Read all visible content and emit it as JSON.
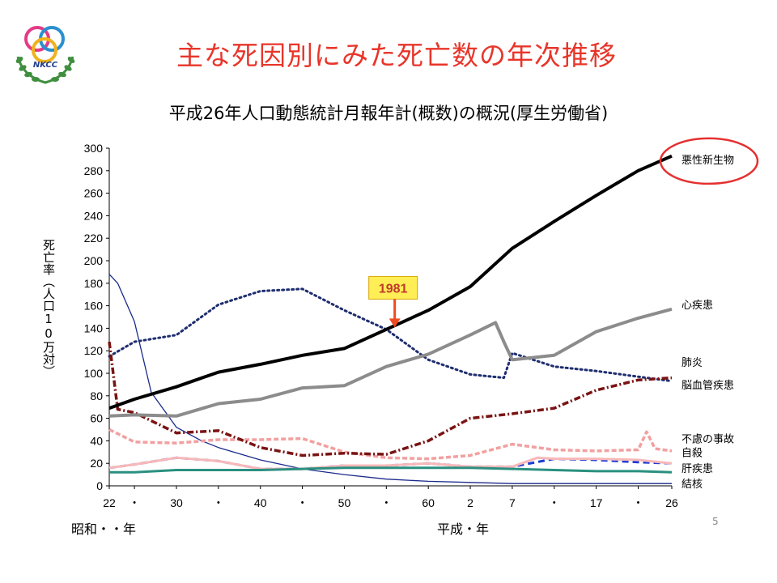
{
  "slide": {
    "title": "主な死因別にみた死亡数の年次推移",
    "subtitle": "平成26年人口動態統計月報年計(概数)の概況(厚生労働省)",
    "logo_text": "NKCC",
    "page_number": "5"
  },
  "colors": {
    "title": "#e8352a",
    "highlight_circle": "#e53030",
    "callout_box": "#ffee55",
    "callout_arrow": "#ef4a1f"
  },
  "chart_data": {
    "type": "line",
    "title": "",
    "ylabel": "死亡率（人口10万対）",
    "xlabel_left": "昭和・・年",
    "xlabel_right": "平成・年",
    "ylim": [
      0,
      300
    ],
    "yticks": [
      0,
      20,
      40,
      60,
      80,
      100,
      120,
      140,
      160,
      180,
      200,
      220,
      240,
      260,
      280,
      300
    ],
    "x_range": [
      1947,
      2014
    ],
    "xtick_labels": [
      {
        "x": 1947,
        "label": "22"
      },
      {
        "x": 1950,
        "label": "・"
      },
      {
        "x": 1955,
        "label": "30"
      },
      {
        "x": 1960,
        "label": "・"
      },
      {
        "x": 1965,
        "label": "40"
      },
      {
        "x": 1970,
        "label": "・"
      },
      {
        "x": 1975,
        "label": "50"
      },
      {
        "x": 1980,
        "label": "・"
      },
      {
        "x": 1985,
        "label": "60"
      },
      {
        "x": 1990,
        "label": "2"
      },
      {
        "x": 1995,
        "label": "7"
      },
      {
        "x": 2000,
        "label": "・"
      },
      {
        "x": 2005,
        "label": "17"
      },
      {
        "x": 2010,
        "label": "・"
      },
      {
        "x": 2014,
        "label": "26"
      }
    ],
    "annotation": {
      "label": "1981",
      "x": 1981,
      "y": 140
    },
    "highlighted_series": "悪性新生物",
    "series": [
      {
        "name": "悪性新生物",
        "color": "#000000",
        "style": "solid-thick",
        "x": [
          1947,
          1950,
          1955,
          1960,
          1965,
          1970,
          1975,
          1980,
          1985,
          1990,
          1995,
          2000,
          2005,
          2010,
          2014
        ],
        "y": [
          69,
          77,
          88,
          101,
          108,
          116,
          122,
          139,
          156,
          177,
          211,
          235,
          258,
          280,
          293
        ]
      },
      {
        "name": "心疾患",
        "color": "#8c8c8c",
        "style": "solid-thick",
        "x": [
          1947,
          1950,
          1955,
          1960,
          1965,
          1970,
          1975,
          1980,
          1985,
          1990,
          1993,
          1994,
          1995,
          2000,
          2005,
          2010,
          2014
        ],
        "y": [
          62,
          63,
          62,
          73,
          77,
          87,
          89,
          106,
          117,
          134,
          145,
          128,
          112,
          116,
          137,
          149,
          157
        ]
      },
      {
        "name": "肺炎",
        "color": "#7a1313",
        "style": "dashdot",
        "x": [
          1947,
          1948,
          1950,
          1955,
          1960,
          1965,
          1970,
          1975,
          1980,
          1985,
          1990,
          1995,
          2000,
          2005,
          2010,
          2014
        ],
        "y": [
          128,
          68,
          65,
          47,
          49,
          34,
          27,
          29,
          28,
          40,
          60,
          64,
          69,
          85,
          94,
          96
        ]
      },
      {
        "name": "脳血管疾患",
        "color": "#1f2e6f",
        "style": "dotted",
        "x": [
          1947,
          1950,
          1955,
          1960,
          1965,
          1970,
          1975,
          1980,
          1985,
          1990,
          1994,
          1995,
          2000,
          2005,
          2010,
          2014
        ],
        "y": [
          115,
          128,
          134,
          161,
          173,
          175,
          156,
          139,
          112,
          99,
          96,
          118,
          106,
          102,
          97,
          93
        ]
      },
      {
        "name": "不慮の事故",
        "color": "#f2a0a0",
        "style": "dashed-thick",
        "x": [
          1947,
          1950,
          1955,
          1960,
          1965,
          1970,
          1975,
          1980,
          1985,
          1990,
          1995,
          2000,
          2005,
          2010,
          2011,
          2012,
          2014
        ],
        "y": [
          50,
          39,
          38,
          41,
          41,
          42,
          30,
          25,
          24,
          27,
          37,
          32,
          31,
          32,
          48,
          33,
          31
        ]
      },
      {
        "name": "自殺",
        "color": "#f7b8b8",
        "style": "solid",
        "x": [
          1947,
          1950,
          1955,
          1960,
          1965,
          1970,
          1975,
          1980,
          1985,
          1990,
          1995,
          1998,
          2000,
          2005,
          2010,
          2014
        ],
        "y": [
          16,
          19,
          25,
          22,
          15,
          15,
          18,
          18,
          20,
          17,
          17,
          25,
          24,
          24,
          23,
          20
        ]
      },
      {
        "name": "肝疾患",
        "color": "#1a3bd6",
        "style": "dashed",
        "x": [
          1947,
          1950,
          1955,
          1960,
          1965,
          1970,
          1975,
          1980,
          1985,
          1990,
          1995,
          2000,
          2005,
          2010,
          2014
        ],
        "y": [
          16,
          19,
          25,
          22,
          15,
          15,
          18,
          18,
          20,
          17,
          17,
          24,
          23,
          21,
          20
        ]
      },
      {
        "name": "結核",
        "color": "#2a9080",
        "style": "solid",
        "x": [
          1947,
          1950,
          1955,
          1960,
          1965,
          1970,
          1975,
          1980,
          1985,
          1990,
          1995,
          2000,
          2005,
          2010,
          2014
        ],
        "y": [
          12,
          12,
          14,
          14,
          14,
          15,
          16,
          16,
          16,
          16,
          15,
          14,
          13,
          13,
          12
        ]
      },
      {
        "name": "結核_thin",
        "color": "#1a2a8a",
        "style": "solid-thin",
        "x": [
          1947,
          1948,
          1950,
          1952,
          1955,
          1958,
          1960,
          1965,
          1970,
          1975,
          1980,
          1985,
          1990,
          1995,
          2000,
          2005,
          2010,
          2014
        ],
        "y": [
          188,
          180,
          146,
          83,
          52,
          40,
          34,
          23,
          15,
          10,
          6,
          4,
          3,
          2,
          2,
          2,
          2,
          2
        ]
      }
    ],
    "series_labels": [
      "悪性新生物",
      "心疾患",
      "肺炎",
      "脳血管疾患",
      "不慮の事故",
      "自殺",
      "肝疾患",
      "結核"
    ]
  }
}
